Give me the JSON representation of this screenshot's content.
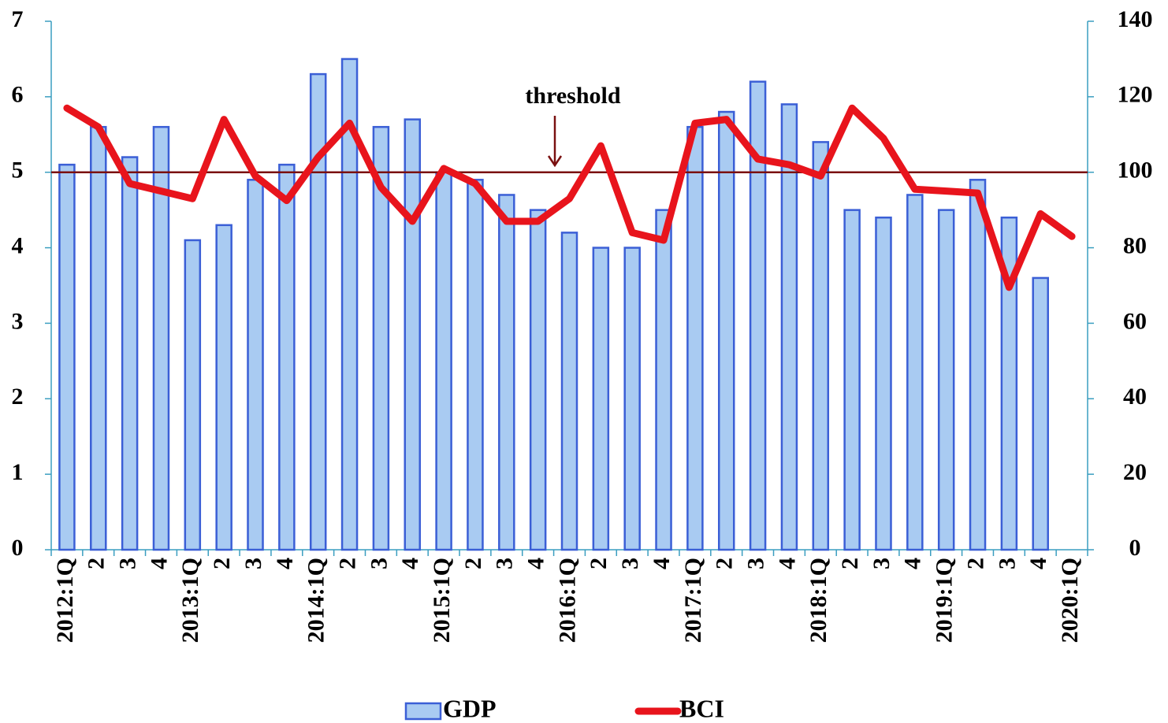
{
  "chart_data": {
    "type": "bar_line",
    "categories": [
      "2012:1Q",
      "2",
      "3",
      "4",
      "2013:1Q",
      "2",
      "3",
      "4",
      "2014:1Q",
      "2",
      "3",
      "4",
      "2015:1Q",
      "2",
      "3",
      "4",
      "2016:1Q",
      "2",
      "3",
      "4",
      "2017:1Q",
      "2",
      "3",
      "4",
      "2018:1Q",
      "2",
      "3",
      "4",
      "2019:1Q",
      "2",
      "3",
      "4",
      "2020:1Q"
    ],
    "series": [
      {
        "name": "GDP",
        "type": "bar",
        "color": "#a9cbf2",
        "edge_color": "#3b5fd6",
        "values": [
          5.1,
          5.6,
          5.2,
          5.6,
          4.1,
          4.3,
          4.9,
          5.1,
          6.3,
          6.5,
          5.6,
          5.7,
          5.0,
          4.9,
          4.7,
          4.5,
          4.2,
          4.0,
          4.0,
          4.5,
          5.6,
          5.8,
          6.2,
          5.9,
          5.4,
          4.5,
          4.4,
          4.7,
          4.5,
          4.9,
          4.4,
          3.6,
          null
        ]
      },
      {
        "name": "BCI",
        "type": "line",
        "axis": "y2",
        "color": "#e8141c",
        "values": [
          117,
          112,
          97,
          95,
          93,
          114,
          99,
          92.5,
          104,
          113,
          96,
          87,
          101,
          97,
          87,
          87,
          93,
          107,
          84,
          82,
          113,
          114,
          103.5,
          102,
          99,
          117,
          109,
          95.5,
          95,
          94.5,
          69.5,
          89,
          83
        ]
      }
    ],
    "threshold": {
      "label": "threshold",
      "value": 100,
      "color": "#7a1010"
    },
    "ylim": [
      0,
      7
    ],
    "yticks": [
      0,
      1,
      2,
      3,
      4,
      5,
      6,
      7
    ],
    "y2lim": [
      0,
      140
    ],
    "y2ticks": [
      0,
      20,
      40,
      60,
      80,
      100,
      120,
      140
    ]
  }
}
